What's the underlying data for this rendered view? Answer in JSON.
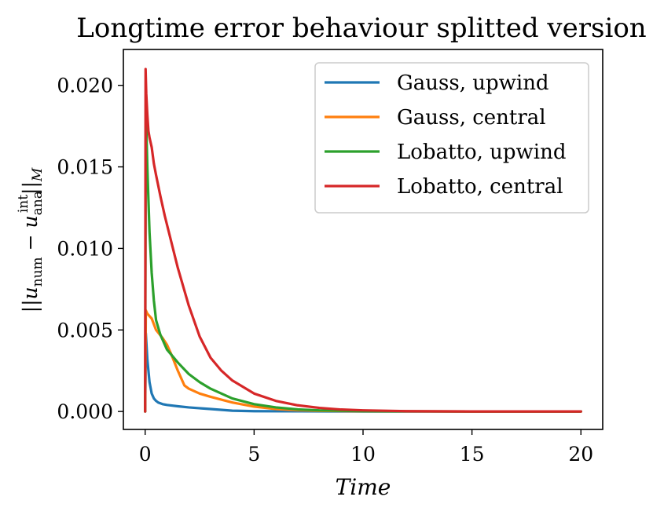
{
  "chart_data": {
    "type": "line",
    "title": "Longtime error behaviour splitted version",
    "xlabel": "Time",
    "ylabel": "||u_num − u_ana^int||_M",
    "xlim": [
      -1,
      21
    ],
    "ylim": [
      -0.0011,
      0.0222
    ],
    "xticks": [
      0,
      5,
      10,
      15,
      20
    ],
    "xtick_labels": [
      "0",
      "5",
      "10",
      "15",
      "20"
    ],
    "yticks": [
      0.0,
      0.005,
      0.01,
      0.015,
      0.02
    ],
    "ytick_labels": [
      "0.000",
      "0.005",
      "0.010",
      "0.015",
      "0.020"
    ],
    "grid": false,
    "legend_position": "top-right",
    "series": [
      {
        "name": "Gauss, upwind",
        "color": "#1f77b4",
        "x": [
          0,
          0.03,
          0.1,
          0.2,
          0.3,
          0.4,
          0.5,
          0.6,
          0.8,
          1,
          1.5,
          2,
          3,
          4,
          5,
          7,
          10,
          15,
          20
        ],
        "y": [
          0.0,
          0.0048,
          0.0032,
          0.0018,
          0.0011,
          0.0008,
          0.00065,
          0.00055,
          0.00045,
          0.0004,
          0.00032,
          0.00025,
          0.00015,
          5e-05,
          2e-05,
          1e-05,
          0.0,
          0.0,
          0.0
        ]
      },
      {
        "name": "Gauss, central",
        "color": "#ff7f0e",
        "x": [
          0,
          0.03,
          0.1,
          0.3,
          0.5,
          0.8,
          1.0,
          1.2,
          1.5,
          1.8,
          2.0,
          2.5,
          3,
          4,
          5,
          6,
          7,
          8,
          10,
          15,
          20
        ],
        "y": [
          0.0,
          0.0062,
          0.006,
          0.0057,
          0.005,
          0.0045,
          0.0041,
          0.0035,
          0.0025,
          0.0016,
          0.0014,
          0.0011,
          0.0009,
          0.00055,
          0.0003,
          0.00015,
          8e-05,
          4e-05,
          1e-05,
          0.0,
          0.0
        ]
      },
      {
        "name": "Lobatto, upwind",
        "color": "#2ca02c",
        "x": [
          0,
          0.03,
          0.1,
          0.2,
          0.3,
          0.4,
          0.5,
          0.7,
          1.0,
          1.5,
          2,
          2.5,
          3,
          4,
          5,
          6,
          7,
          8,
          10,
          12,
          15,
          20
        ],
        "y": [
          0.0,
          0.0185,
          0.015,
          0.011,
          0.0085,
          0.0068,
          0.0056,
          0.0047,
          0.0038,
          0.003,
          0.0023,
          0.0018,
          0.0014,
          0.0008,
          0.00045,
          0.00025,
          0.00013,
          7e-05,
          2e-05,
          1e-05,
          0.0,
          0.0
        ]
      },
      {
        "name": "Lobatto, central",
        "color": "#d62728",
        "x": [
          0,
          0.02,
          0.05,
          0.1,
          0.15,
          0.2,
          0.3,
          0.4,
          0.5,
          0.7,
          0.9,
          1.2,
          1.5,
          2,
          2.5,
          3,
          3.5,
          4,
          5,
          6,
          7,
          8,
          9,
          10,
          12,
          15,
          20
        ],
        "y": [
          0.0,
          0.021,
          0.0195,
          0.0182,
          0.0172,
          0.0168,
          0.0162,
          0.0152,
          0.0145,
          0.0132,
          0.012,
          0.0104,
          0.0088,
          0.0065,
          0.0046,
          0.0033,
          0.0025,
          0.0019,
          0.0011,
          0.00065,
          0.00038,
          0.00022,
          0.00012,
          7e-05,
          2e-05,
          0.0,
          0.0
        ]
      }
    ]
  }
}
